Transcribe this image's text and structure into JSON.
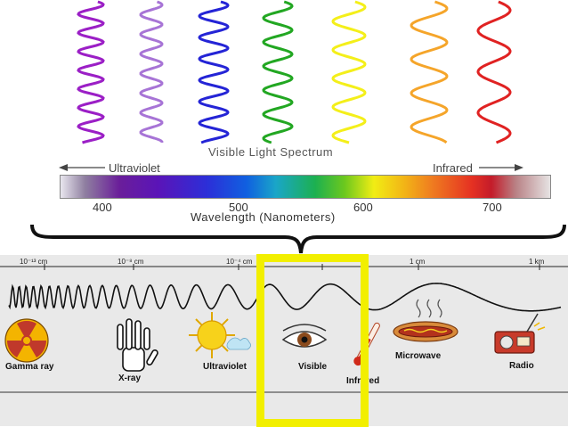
{
  "spectrum": {
    "title": "Visible Light Spectrum",
    "ultraviolet_label": "Ultraviolet",
    "infrared_label": "Infrared",
    "axis_title": "Wavelength (Nanometers)",
    "ticks": [
      "400",
      "500",
      "600",
      "700"
    ],
    "wave_colors": [
      "#9b1fc6",
      "#a774d6",
      "#2424d6",
      "#22a722",
      "#f4ef1a",
      "#f5a52a",
      "#e02222"
    ]
  },
  "em_scale": {
    "labels": [
      "10⁻¹³ cm",
      "10⁻⁸ cm",
      "10⁻⁴ cm",
      "1 cm",
      "1 km"
    ]
  },
  "em_items": {
    "gamma": "Gamma ray",
    "xray": "X-ray",
    "ultraviolet": "Ultraviolet",
    "visible": "Visible",
    "infrared": "Infrared",
    "microwave": "Microwave",
    "radio": "Radio"
  },
  "highlight_color": "#f2ef00"
}
